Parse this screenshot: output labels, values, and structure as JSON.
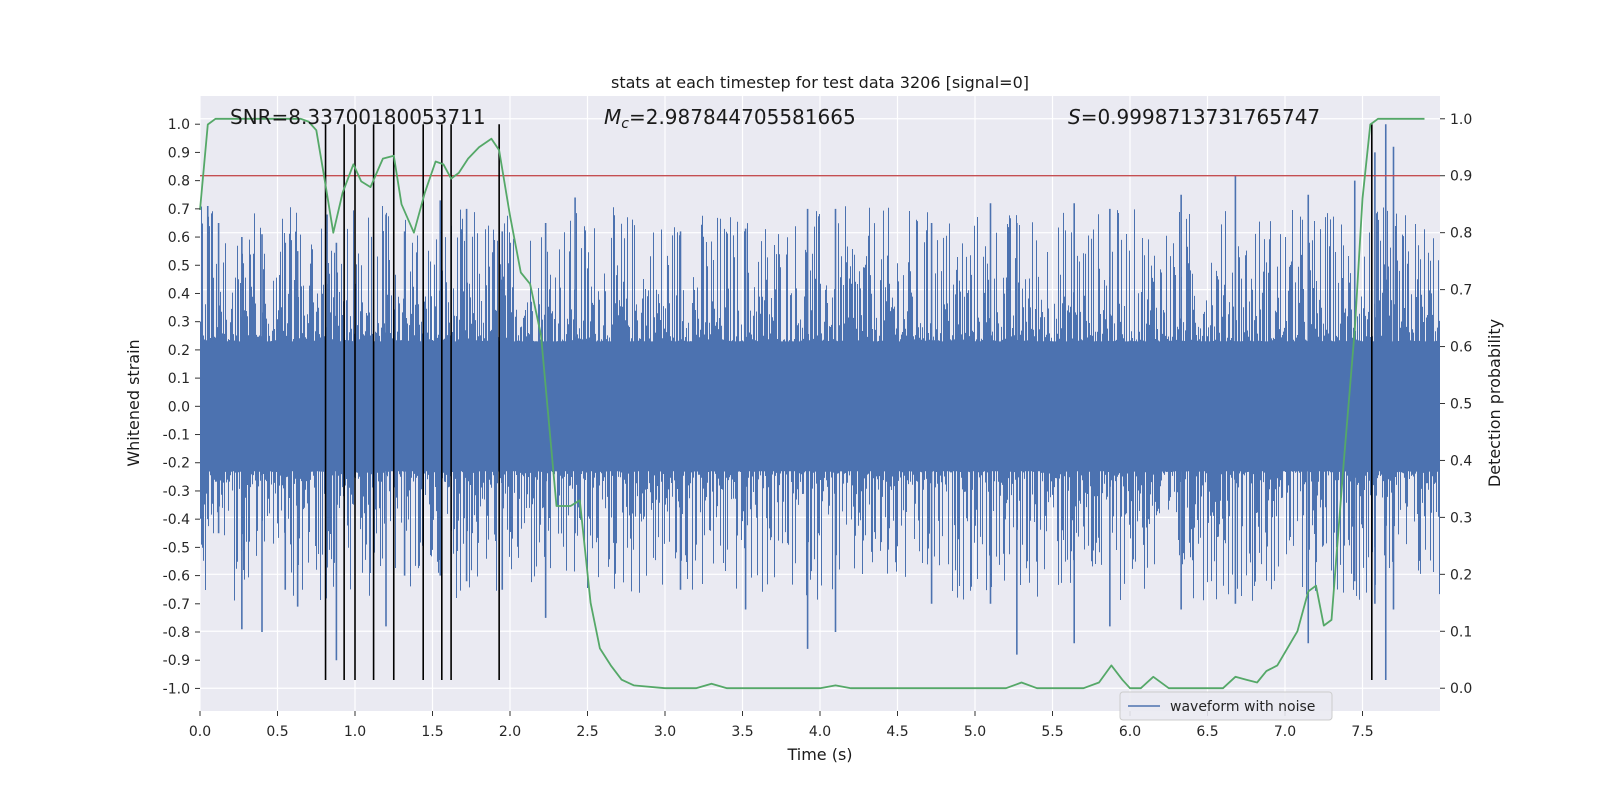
{
  "chart_data": {
    "type": "line",
    "title": "stats at each timestep for test data 3206 [signal=0]",
    "xlabel": "Time (s)",
    "ylabel_left": "Whitened strain",
    "ylabel_right": "Detection probability",
    "xlim": [
      0.0,
      8.0
    ],
    "ylim_left": [
      -1.08,
      1.1
    ],
    "ylim_right": [
      -0.04,
      1.04
    ],
    "x_ticks": [
      "0.0",
      "0.5",
      "1.0",
      "1.5",
      "2.0",
      "2.5",
      "3.0",
      "3.5",
      "4.0",
      "4.5",
      "5.0",
      "5.5",
      "6.0",
      "6.5",
      "7.0",
      "7.5"
    ],
    "x_tick_values": [
      0.0,
      0.5,
      1.0,
      1.5,
      2.0,
      2.5,
      3.0,
      3.5,
      4.0,
      4.5,
      5.0,
      5.5,
      6.0,
      6.5,
      7.0,
      7.5
    ],
    "y_left_ticks": [
      "1.0",
      "0.9",
      "0.8",
      "0.7",
      "0.6",
      "0.5",
      "0.4",
      "0.3",
      "0.2",
      "0.1",
      "0.0",
      "-0.1",
      "-0.2",
      "-0.3",
      "-0.4",
      "-0.5",
      "-0.6",
      "-0.7",
      "-0.8",
      "-0.9",
      "-1.0"
    ],
    "y_left_tick_values": [
      1.0,
      0.9,
      0.8,
      0.7,
      0.6,
      0.5,
      0.4,
      0.3,
      0.2,
      0.1,
      0.0,
      -0.1,
      -0.2,
      -0.3,
      -0.4,
      -0.5,
      -0.6,
      -0.7,
      -0.8,
      -0.9,
      -1.0
    ],
    "y_right_ticks": [
      "1.0",
      "0.9",
      "0.8",
      "0.7",
      "0.6",
      "0.5",
      "0.4",
      "0.3",
      "0.2",
      "0.1",
      "0.0"
    ],
    "y_right_tick_values": [
      1.0,
      0.9,
      0.8,
      0.7,
      0.6,
      0.5,
      0.4,
      0.3,
      0.2,
      0.1,
      0.0
    ],
    "annotations": {
      "snr": "SNR=8.33700180053711",
      "mc_symbol": "M",
      "mc_sub": "c",
      "mc_value": "=2.987844705581665",
      "s_symbol": "S",
      "s_value": "=0.9998713731765747"
    },
    "legend": {
      "label": "waveform with noise",
      "location": "lower-right"
    },
    "threshold": {
      "value_right": 0.9,
      "color": "#c44e52"
    },
    "detection_lines_x": [
      0.81,
      0.93,
      1.0,
      1.12,
      1.25,
      1.44,
      1.56,
      1.62,
      1.93,
      7.56
    ],
    "detection_lines_range_left": [
      -0.97,
      1.0
    ],
    "waveform": {
      "name": "waveform with noise",
      "color": "#4c72b0",
      "core_amplitude": 0.2,
      "peaks": [
        {
          "t": 0.05,
          "hi": 0.71,
          "lo": -0.4
        },
        {
          "t": 0.12,
          "hi": 0.65,
          "lo": -0.45
        },
        {
          "t": 0.27,
          "hi": 0.6,
          "lo": -0.79
        },
        {
          "t": 0.4,
          "hi": 0.61,
          "lo": -0.8
        },
        {
          "t": 0.55,
          "hi": 0.58,
          "lo": -0.65
        },
        {
          "t": 0.63,
          "hi": 0.55,
          "lo": -0.71
        },
        {
          "t": 0.82,
          "hi": 0.68,
          "lo": -0.55
        },
        {
          "t": 0.88,
          "hi": 0.58,
          "lo": -0.9
        },
        {
          "t": 1.2,
          "hi": 0.68,
          "lo": -0.78
        },
        {
          "t": 1.32,
          "hi": 0.62,
          "lo": -0.6
        },
        {
          "t": 1.55,
          "hi": 0.73,
          "lo": -0.6
        },
        {
          "t": 1.72,
          "hi": 0.7,
          "lo": -0.62
        },
        {
          "t": 1.95,
          "hi": 0.62,
          "lo": -0.65
        },
        {
          "t": 2.23,
          "hi": 0.65,
          "lo": -0.75
        },
        {
          "t": 2.42,
          "hi": 0.74,
          "lo": -0.45
        },
        {
          "t": 3.1,
          "hi": 0.62,
          "lo": -0.65
        },
        {
          "t": 3.52,
          "hi": 0.63,
          "lo": -0.72
        },
        {
          "t": 3.92,
          "hi": 0.7,
          "lo": -0.86
        },
        {
          "t": 4.1,
          "hi": 0.7,
          "lo": -0.8
        },
        {
          "t": 4.72,
          "hi": 0.65,
          "lo": -0.7
        },
        {
          "t": 5.1,
          "hi": 0.72,
          "lo": -0.7
        },
        {
          "t": 5.27,
          "hi": 0.65,
          "lo": -0.88
        },
        {
          "t": 5.64,
          "hi": 0.72,
          "lo": -0.84
        },
        {
          "t": 5.87,
          "hi": 0.7,
          "lo": -0.78
        },
        {
          "t": 6.33,
          "hi": 0.75,
          "lo": -0.72
        },
        {
          "t": 6.68,
          "hi": 0.82,
          "lo": -0.7
        },
        {
          "t": 7.15,
          "hi": 0.75,
          "lo": -0.84
        },
        {
          "t": 7.45,
          "hi": 0.8,
          "lo": -0.62
        },
        {
          "t": 7.58,
          "hi": 0.9,
          "lo": -0.7
        },
        {
          "t": 7.65,
          "hi": 1.0,
          "lo": -0.97
        },
        {
          "t": 7.7,
          "hi": 0.92,
          "lo": -0.72
        }
      ]
    },
    "probability": {
      "name": "detection probability",
      "color": "#55a868",
      "x": [
        0.0,
        0.05,
        0.1,
        0.2,
        0.3,
        0.4,
        0.5,
        0.6,
        0.65,
        0.7,
        0.75,
        0.8,
        0.86,
        0.92,
        0.99,
        1.04,
        1.1,
        1.18,
        1.25,
        1.3,
        1.38,
        1.45,
        1.52,
        1.57,
        1.62,
        1.67,
        1.73,
        1.8,
        1.88,
        1.93,
        2.0,
        2.07,
        2.13,
        2.2,
        2.3,
        2.39,
        2.45,
        2.52,
        2.58,
        2.65,
        2.72,
        2.8,
        3.0,
        3.2,
        3.3,
        3.4,
        3.5,
        3.7,
        4.0,
        4.1,
        4.2,
        4.4,
        4.5,
        4.6,
        4.7,
        4.8,
        4.9,
        5.0,
        5.2,
        5.3,
        5.4,
        5.5,
        5.7,
        5.8,
        5.88,
        5.95,
        6.0,
        6.07,
        6.15,
        6.25,
        6.35,
        6.45,
        6.5,
        6.6,
        6.68,
        6.75,
        6.82,
        6.88,
        6.95,
        7.08,
        7.15,
        7.2,
        7.25,
        7.3,
        7.38,
        7.45,
        7.5,
        7.55,
        7.6,
        7.63,
        7.7,
        7.8,
        7.9
      ],
      "values": [
        0.84,
        0.99,
        1.0,
        1.0,
        1.0,
        1.0,
        1.0,
        1.0,
        1.0,
        0.995,
        0.98,
        0.9,
        0.8,
        0.87,
        0.92,
        0.89,
        0.88,
        0.93,
        0.935,
        0.85,
        0.8,
        0.87,
        0.925,
        0.92,
        0.895,
        0.905,
        0.93,
        0.95,
        0.965,
        0.945,
        0.83,
        0.73,
        0.71,
        0.62,
        0.32,
        0.32,
        0.33,
        0.15,
        0.07,
        0.04,
        0.015,
        0.005,
        0.0,
        0.0,
        0.008,
        0.0,
        0.0,
        0.0,
        0.0,
        0.005,
        0.0,
        0.0,
        0.0,
        0.0,
        0.0,
        0.0,
        0.0,
        0.0,
        0.0,
        0.01,
        0.0,
        0.0,
        0.0,
        0.01,
        0.04,
        0.015,
        0.0,
        0.0,
        0.02,
        0.0,
        0.0,
        0.0,
        0.0,
        0.0,
        0.02,
        0.015,
        0.01,
        0.03,
        0.04,
        0.1,
        0.17,
        0.18,
        0.11,
        0.12,
        0.4,
        0.63,
        0.86,
        0.99,
        1.0,
        1.0,
        1.0,
        1.0,
        1.0
      ]
    }
  }
}
